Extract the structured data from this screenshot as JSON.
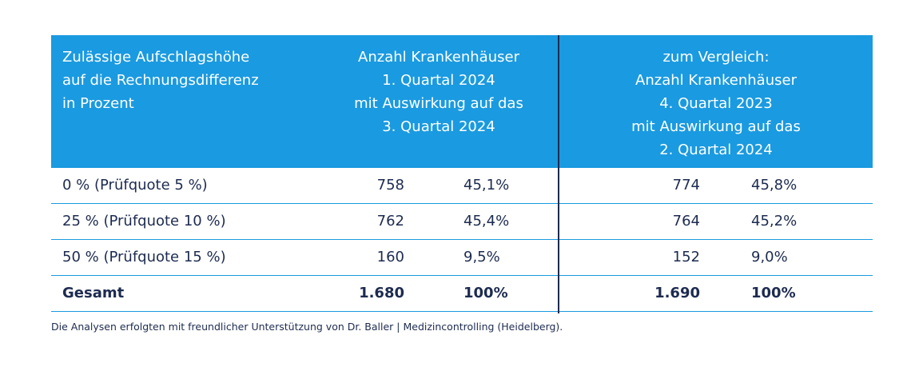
{
  "header": {
    "col1": [
      "Zulässige Aufschlagshöhe",
      "auf die Rechnungsdifferenz",
      "in Prozent"
    ],
    "col2": [
      "Anzahl Krankenhäuser",
      "1. Quartal 2024",
      "mit Auswirkung auf das",
      "3. Quartal 2024"
    ],
    "col3": [
      "zum Vergleich:",
      "Anzahl Krankenhäuser",
      "4. Quartal 2023",
      "mit Auswirkung auf das",
      "2. Quartal 2024"
    ]
  },
  "rows": [
    {
      "label": "0 % (Prüfquote 5 %)",
      "n_2024": "758",
      "p_2024": "45,1%",
      "n_2023": "774",
      "p_2023": "45,8%"
    },
    {
      "label": "25 % (Prüfquote 10 %)",
      "n_2024": "762",
      "p_2024": "45,4%",
      "n_2023": "764",
      "p_2023": "45,2%"
    },
    {
      "label": "50 % (Prüfquote 15 %)",
      "n_2024": "160",
      "p_2024": "9,5%",
      "n_2023": "152",
      "p_2023": "9,0%"
    }
  ],
  "total": {
    "label": "Gesamt",
    "n_2024": "1.680",
    "p_2024": "100%",
    "n_2023": "1.690",
    "p_2023": "100%"
  },
  "footnote": "Die Analysen erfolgten mit freundlicher Unterstützung von Dr. Baller | Medizincontrolling (Heidelberg).",
  "colors": {
    "header_bg": "#1a9ae0",
    "text": "#1d2b50",
    "rule": "#1a9ae0"
  }
}
